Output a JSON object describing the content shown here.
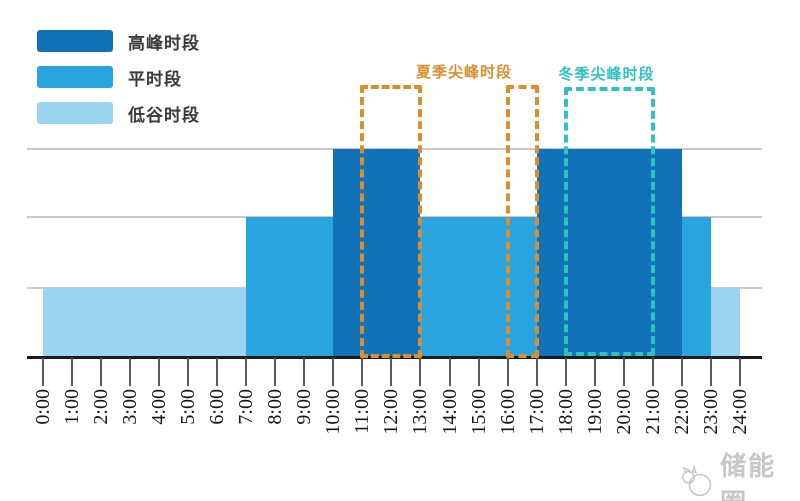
{
  "legend": {
    "items": [
      {
        "label": "高峰时段",
        "color": "#1172B8"
      },
      {
        "label": "平时段",
        "color": "#29A4DF"
      },
      {
        "label": "低谷时段",
        "color": "#9CD3F1"
      }
    ]
  },
  "annotations": [
    {
      "id": "summer",
      "label": "夏季尖峰时段",
      "color": "#DB8E2D",
      "ranges": [
        [
          11,
          13
        ],
        [
          16,
          17
        ]
      ],
      "label_center_hour": 14.5
    },
    {
      "id": "winter",
      "label": "冬季尖峰时段",
      "color": "#2DC4BE",
      "ranges": [
        [
          18,
          21
        ]
      ],
      "label_center_hour": 19.4
    }
  ],
  "watermark": {
    "text": "储能圈"
  },
  "chart_data": {
    "type": "bar",
    "x_range": [
      0,
      24
    ],
    "x_ticks": [
      "0:00",
      "1:00",
      "2:00",
      "3:00",
      "4:00",
      "5:00",
      "6:00",
      "7:00",
      "8:00",
      "9:00",
      "10:00",
      "11:00",
      "12:00",
      "13:00",
      "14:00",
      "15:00",
      "16:00",
      "17:00",
      "18:00",
      "19:00",
      "20:00",
      "21:00",
      "22:00",
      "23:00",
      "24:00"
    ],
    "grid": true,
    "legend_position": "top-left",
    "levels": {
      "低谷时段": 1,
      "平时段": 2,
      "高峰时段": 3
    },
    "periods": [
      {
        "start": 0,
        "end": 7,
        "category": "低谷时段",
        "level": 1
      },
      {
        "start": 7,
        "end": 10,
        "category": "平时段",
        "level": 2
      },
      {
        "start": 10,
        "end": 13,
        "category": "高峰时段",
        "level": 3
      },
      {
        "start": 13,
        "end": 17,
        "category": "平时段",
        "level": 2
      },
      {
        "start": 17,
        "end": 22,
        "category": "高峰时段",
        "level": 3
      },
      {
        "start": 22,
        "end": 23,
        "category": "平时段",
        "level": 2
      },
      {
        "start": 23,
        "end": 24,
        "category": "低谷时段",
        "level": 1
      }
    ]
  }
}
